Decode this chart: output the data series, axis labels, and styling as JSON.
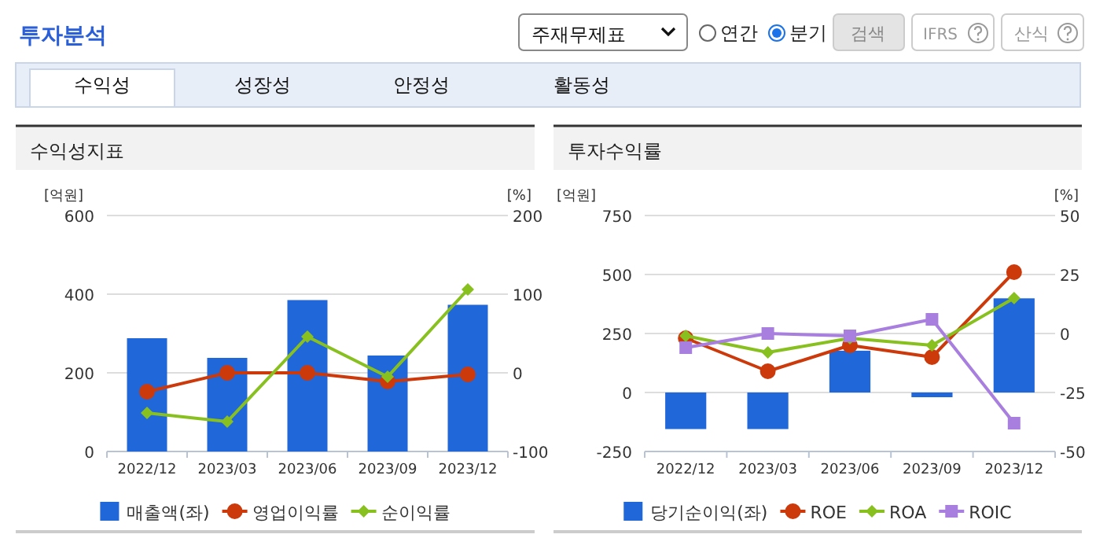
{
  "chart_data": [
    {
      "type": "other",
      "annotations": [
        "투자분석",
        "주재무제표",
        "연간",
        "분기",
        "검색",
        "IFRS",
        "산식",
        "수익성",
        "성장성",
        "안정성",
        "활동성"
      ]
    },
    {
      "type": "bar",
      "title": "수익성지표",
      "ylabel": "[억원]",
      "y2label": "[%]",
      "categories": [
        "2022/12",
        "2023/03",
        "2023/06",
        "2023/09",
        "2023/12"
      ],
      "ylim": [
        0,
        600
      ],
      "yticks": [
        0,
        200,
        400,
        600
      ],
      "y2lim": [
        -100,
        200
      ],
      "y2ticks": [
        -100,
        0,
        100,
        200
      ],
      "grid": "y",
      "legend": "bottom",
      "series": [
        {
          "name": "매출액(좌)",
          "type": "bar",
          "color": "#2067d9",
          "values": [
            288,
            238,
            385,
            244,
            373
          ]
        },
        {
          "name": "영업이익률",
          "type": "line",
          "axis": "y2",
          "marker": "circle",
          "color": "#cc3a0c",
          "values": [
            -24,
            0,
            0,
            -11,
            -2
          ]
        },
        {
          "name": "순이익률",
          "type": "line",
          "axis": "y2",
          "marker": "diamond",
          "color": "#88c020",
          "values": [
            -51,
            -62,
            46,
            -5,
            106
          ]
        }
      ]
    },
    {
      "type": "bar",
      "title": "투자수익률",
      "ylabel": "[억원]",
      "y2label": "[%]",
      "categories": [
        "2022/12",
        "2023/03",
        "2023/06",
        "2023/09",
        "2023/12"
      ],
      "ylim": [
        -250,
        750
      ],
      "yticks": [
        -250,
        0,
        250,
        500,
        750
      ],
      "y2lim": [
        -50,
        50
      ],
      "y2ticks": [
        -50,
        -25,
        0,
        25,
        50
      ],
      "grid": "y",
      "legend": "bottom",
      "series": [
        {
          "name": "당기순이익(좌)",
          "type": "bar",
          "color": "#2067d9",
          "values": [
            -155,
            -155,
            177,
            -20,
            399
          ]
        },
        {
          "name": "ROE",
          "type": "line",
          "axis": "y2",
          "marker": "circle",
          "color": "#cc3a0c",
          "values": [
            -2,
            -16,
            -5,
            -10,
            26
          ]
        },
        {
          "name": "ROA",
          "type": "line",
          "axis": "y2",
          "marker": "diamond",
          "color": "#88c020",
          "values": [
            -1,
            -8,
            -2,
            -5,
            15
          ]
        },
        {
          "name": "ROIC",
          "type": "line",
          "axis": "y2",
          "marker": "square",
          "color": "#a87fdf",
          "values": [
            -6,
            0,
            -1,
            6,
            -38
          ]
        }
      ]
    }
  ]
}
